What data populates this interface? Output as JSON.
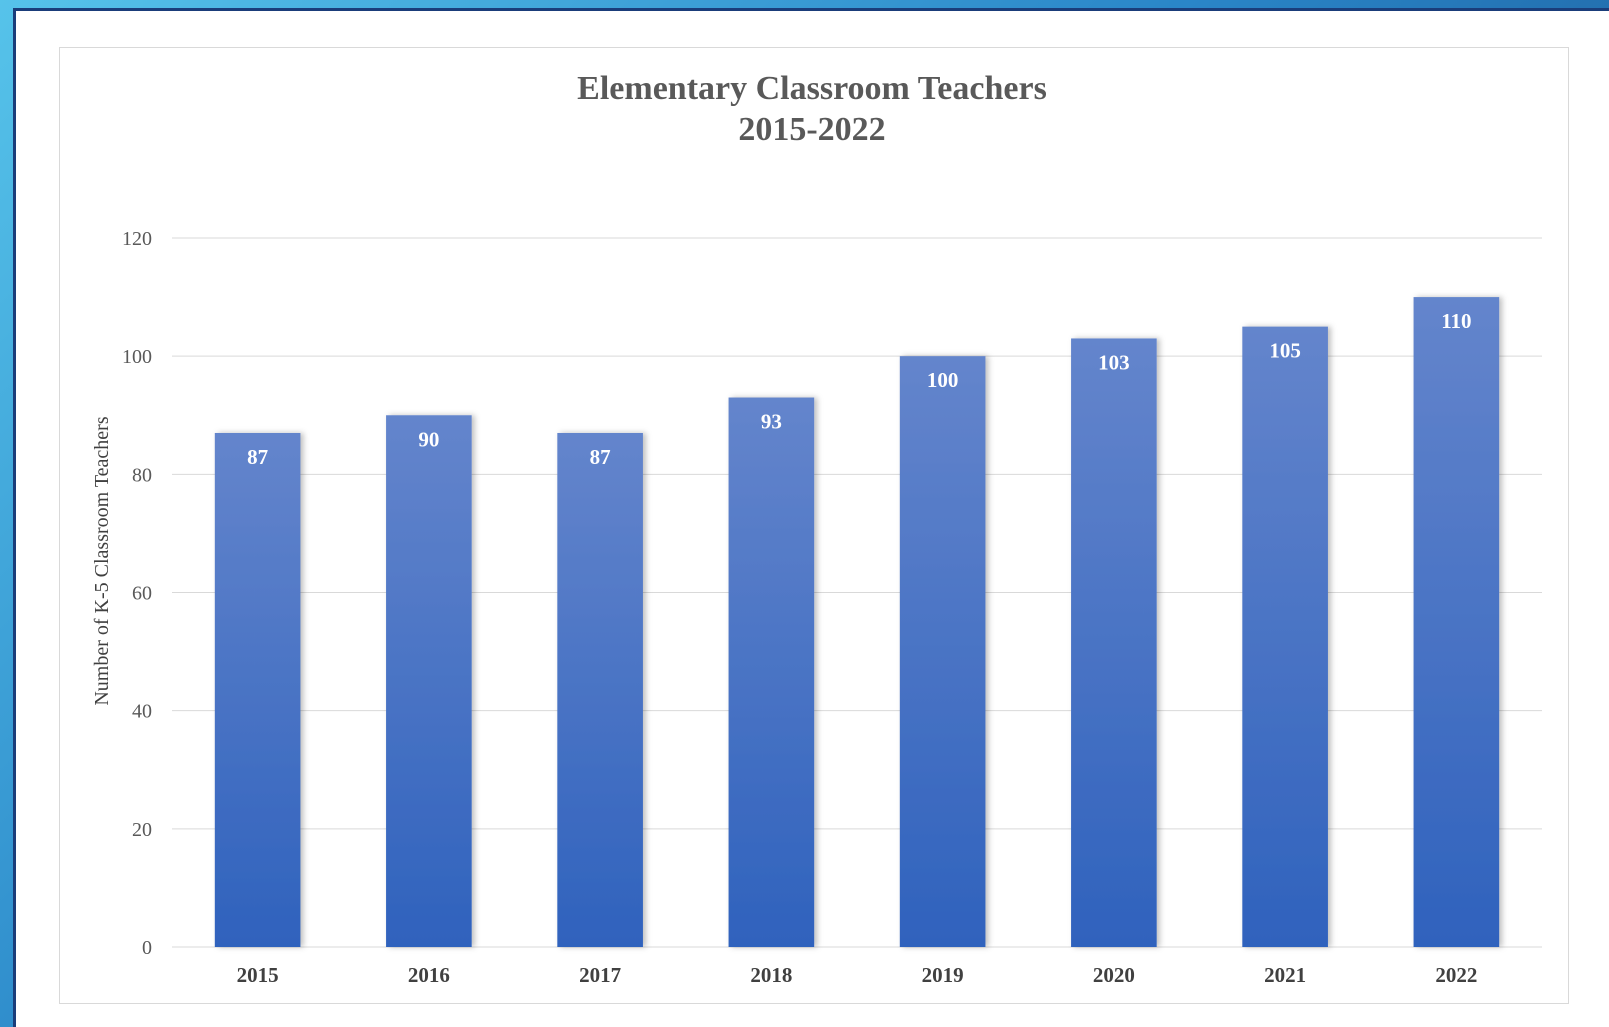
{
  "chart_data": {
    "type": "bar",
    "title": "Elementary Classroom Teachers",
    "subtitle": "2015-2022",
    "ylabel": "Number of K-5 Classroom Teachers",
    "xlabel": "",
    "categories": [
      "2015",
      "2016",
      "2017",
      "2018",
      "2019",
      "2020",
      "2021",
      "2022"
    ],
    "values": [
      87,
      90,
      87,
      93,
      100,
      103,
      105,
      110
    ],
    "ylim": [
      0,
      120
    ],
    "yticks": [
      0,
      20,
      40,
      60,
      80,
      100,
      120
    ],
    "grid": true,
    "legend": "none",
    "data_labels": true,
    "bar_color_top": "#6485cc",
    "bar_color_bottom": "#2f62bd"
  }
}
